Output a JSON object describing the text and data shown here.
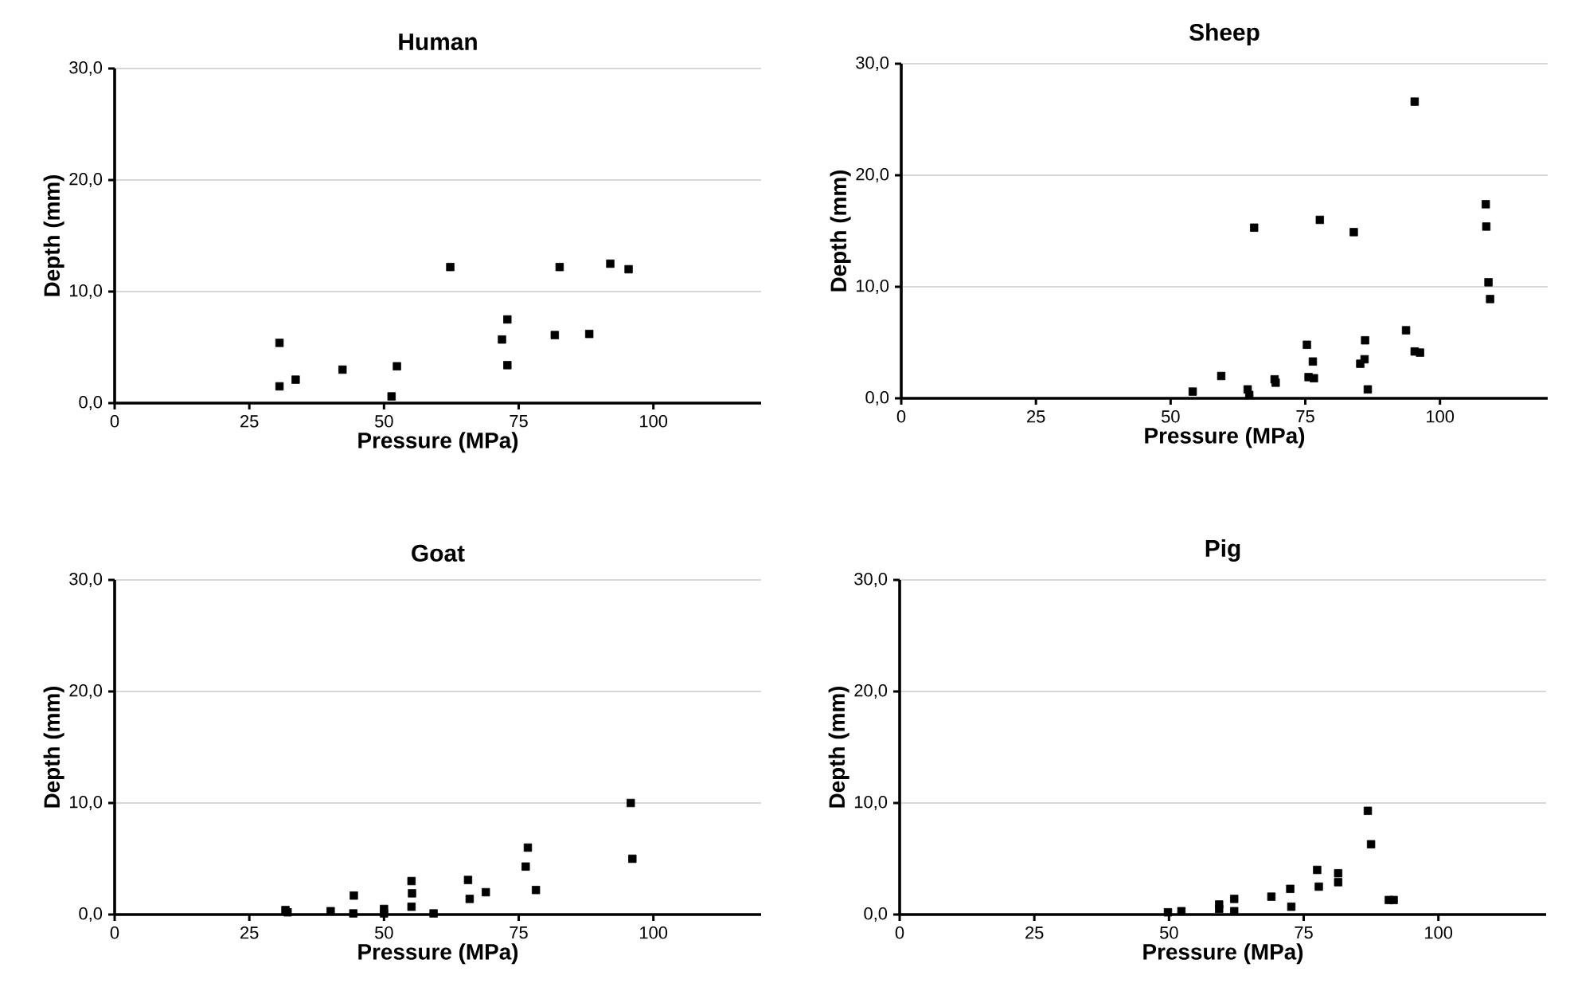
{
  "chart_data": [
    {
      "type": "scatter",
      "title": "Human",
      "xlabel": "Pressure (MPa)",
      "ylabel": "Depth (mm)",
      "marker": "square",
      "grid": "y",
      "color": "#000000",
      "xlim": [
        0,
        120
      ],
      "ylim": [
        0,
        30
      ],
      "xticks": [
        0,
        25,
        50,
        75,
        100
      ],
      "yticks": [
        {
          "value": 0,
          "label": "0,0"
        },
        {
          "value": 10,
          "label": "10,0"
        },
        {
          "value": 20,
          "label": "20,0"
        },
        {
          "value": 30,
          "label": "30,0"
        }
      ],
      "x": [
        30.6,
        30.6,
        33.6,
        42.3,
        51.4,
        52.4,
        62.3,
        71.9,
        72.9,
        72.9,
        81.7,
        82.6,
        88.1,
        92.0,
        95.4
      ],
      "values": [
        5.4,
        1.5,
        2.1,
        3.0,
        0.6,
        3.3,
        12.2,
        5.7,
        7.5,
        3.4,
        6.1,
        12.2,
        6.2,
        12.5,
        12.0
      ]
    },
    {
      "type": "scatter",
      "title": "Sheep",
      "xlabel": "Pressure (MPa)",
      "ylabel": "Depth (mm)",
      "marker": "square",
      "grid": "y",
      "color": "#000000",
      "xlim": [
        0,
        120
      ],
      "ylim": [
        0,
        30
      ],
      "xticks": [
        0,
        25,
        50,
        75,
        100
      ],
      "yticks": [
        {
          "value": 0,
          "label": "0,0"
        },
        {
          "value": 10,
          "label": "10,0"
        },
        {
          "value": 20,
          "label": "20,0"
        },
        {
          "value": 30,
          "label": "30,0"
        }
      ],
      "x": [
        54.1,
        59.4,
        64.3,
        64.6,
        65.5,
        69.3,
        69.5,
        75.3,
        75.6,
        76.4,
        76.6,
        77.7,
        84.0,
        85.2,
        86.0,
        86.1,
        86.6,
        93.7,
        95.3,
        95.3,
        96.3,
        108.5,
        108.6,
        109.0,
        109.3
      ],
      "values": [
        0.6,
        2.0,
        0.8,
        0.3,
        15.3,
        1.7,
        1.4,
        4.8,
        1.9,
        3.3,
        1.8,
        16.0,
        14.9,
        3.1,
        3.5,
        5.2,
        0.8,
        6.1,
        26.6,
        4.2,
        4.1,
        17.4,
        15.4,
        10.4,
        8.9
      ]
    },
    {
      "type": "scatter",
      "title": "Goat",
      "xlabel": "Pressure (MPa)",
      "ylabel": "Depth (mm)",
      "marker": "square",
      "grid": "y",
      "color": "#000000",
      "xlim": [
        0,
        120
      ],
      "ylim": [
        0,
        30
      ],
      "xticks": [
        0,
        25,
        50,
        75,
        100
      ],
      "yticks": [
        {
          "value": 0,
          "label": "0,0"
        },
        {
          "value": 10,
          "label": "10,0"
        },
        {
          "value": 20,
          "label": "20,0"
        },
        {
          "value": 30,
          "label": "30,0"
        }
      ],
      "x": [
        31.7,
        32.1,
        40.1,
        44.4,
        44.3,
        50.0,
        50.0,
        55.1,
        55.2,
        55.1,
        59.2,
        65.6,
        65.9,
        68.9,
        76.3,
        76.7,
        78.2,
        95.8,
        96.1
      ],
      "values": [
        0.4,
        0.2,
        0.3,
        1.7,
        0.1,
        0.5,
        0.1,
        3.0,
        1.9,
        0.7,
        0.1,
        3.1,
        1.4,
        2.0,
        4.3,
        6.0,
        2.2,
        10.0,
        5.0
      ]
    },
    {
      "type": "scatter",
      "title": "Pig",
      "xlabel": "Pressure (MPa)",
      "ylabel": "Depth (mm)",
      "marker": "square",
      "grid": "y",
      "color": "#000000",
      "xlim": [
        0,
        120
      ],
      "ylim": [
        0,
        30
      ],
      "xticks": [
        0,
        25,
        50,
        75,
        100
      ],
      "yticks": [
        {
          "value": 0,
          "label": "0,0"
        },
        {
          "value": 10,
          "label": "10,0"
        },
        {
          "value": 20,
          "label": "20,0"
        },
        {
          "value": 30,
          "label": "30,0"
        }
      ],
      "x": [
        49.8,
        52.3,
        59.3,
        59.3,
        62.1,
        62.1,
        69.0,
        72.5,
        72.7,
        77.5,
        77.8,
        81.4,
        81.4,
        86.9,
        87.5,
        90.8,
        91.7
      ],
      "values": [
        0.2,
        0.3,
        0.9,
        0.5,
        1.4,
        0.3,
        1.6,
        2.3,
        0.7,
        4.0,
        2.5,
        3.7,
        2.9,
        9.3,
        6.3,
        1.3,
        1.3
      ]
    }
  ]
}
